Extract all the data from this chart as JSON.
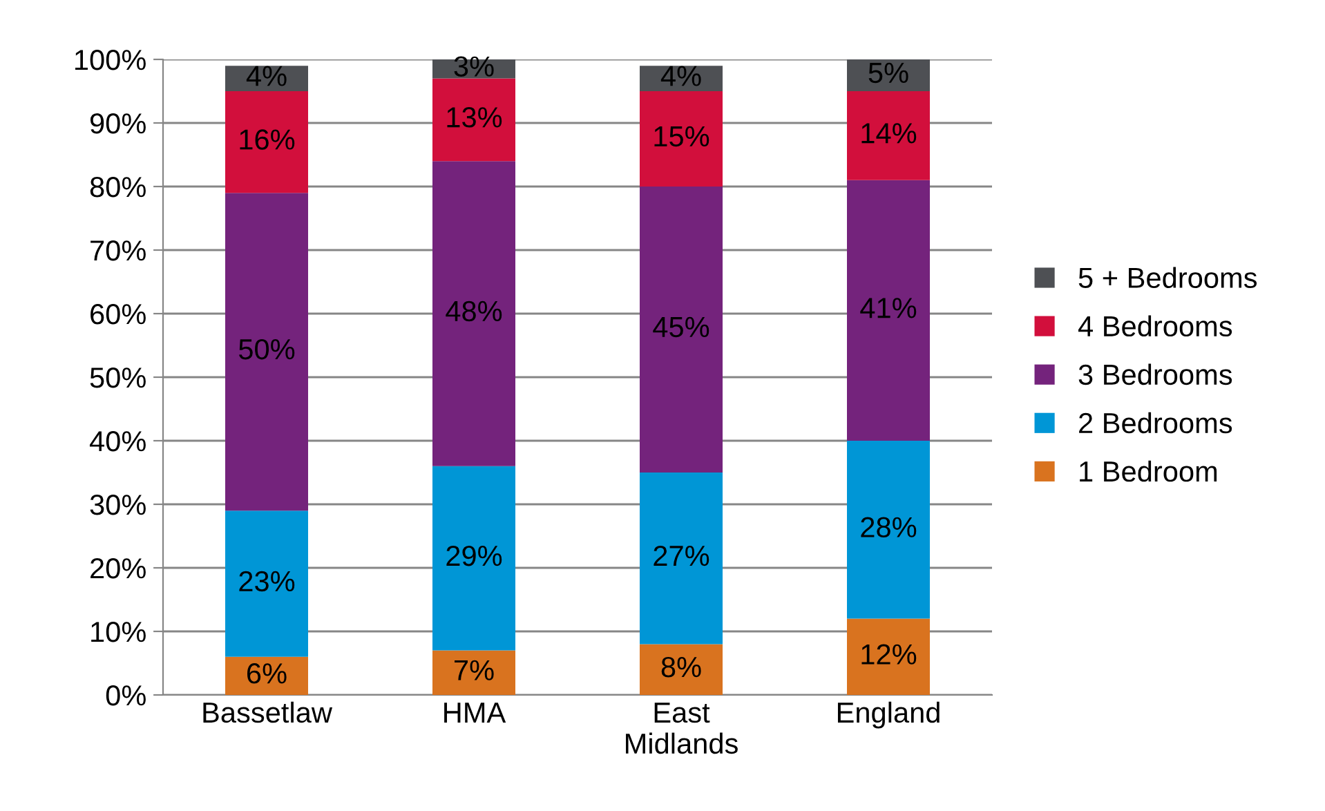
{
  "chart_data": {
    "type": "bar",
    "stacked": true,
    "categories": [
      "Bassetlaw",
      "HMA",
      "East\nMidlands",
      "England"
    ],
    "series": [
      {
        "name": "1 Bedroom",
        "color": "#d9731f",
        "values": [
          6,
          7,
          8,
          12
        ],
        "value_labels": [
          "6%",
          "7%",
          "8%",
          "12%"
        ]
      },
      {
        "name": "2 Bedrooms",
        "color": "#0096d6",
        "values": [
          23,
          29,
          27,
          28
        ],
        "value_labels": [
          "23%",
          "29%",
          "27%",
          "28%"
        ]
      },
      {
        "name": "3 Bedrooms",
        "color": "#74237c",
        "values": [
          50,
          48,
          45,
          41
        ],
        "value_labels": [
          "50%",
          "48%",
          "45%",
          "41%"
        ]
      },
      {
        "name": "4 Bedrooms",
        "color": "#d20f3c",
        "values": [
          16,
          13,
          15,
          14
        ],
        "value_labels": [
          "16%",
          "13%",
          "15%",
          "14%"
        ]
      },
      {
        "name": "5 + Bedrooms",
        "color": "#4e5054",
        "values": [
          4,
          3,
          4,
          5
        ],
        "value_labels": [
          "4%",
          "3%",
          "4%",
          "5%"
        ]
      }
    ],
    "ylim": [
      0,
      100
    ],
    "yticks": [
      {
        "value": 0,
        "label": "0%"
      },
      {
        "value": 10,
        "label": "10%"
      },
      {
        "value": 20,
        "label": "20%"
      },
      {
        "value": 30,
        "label": "30%"
      },
      {
        "value": 40,
        "label": "40%"
      },
      {
        "value": 50,
        "label": "50%"
      },
      {
        "value": 60,
        "label": "60%"
      },
      {
        "value": 70,
        "label": "70%"
      },
      {
        "value": 80,
        "label": "80%"
      },
      {
        "value": 90,
        "label": "90%"
      },
      {
        "value": 100,
        "label": "100%"
      }
    ],
    "grid": "y",
    "legend": "right"
  }
}
